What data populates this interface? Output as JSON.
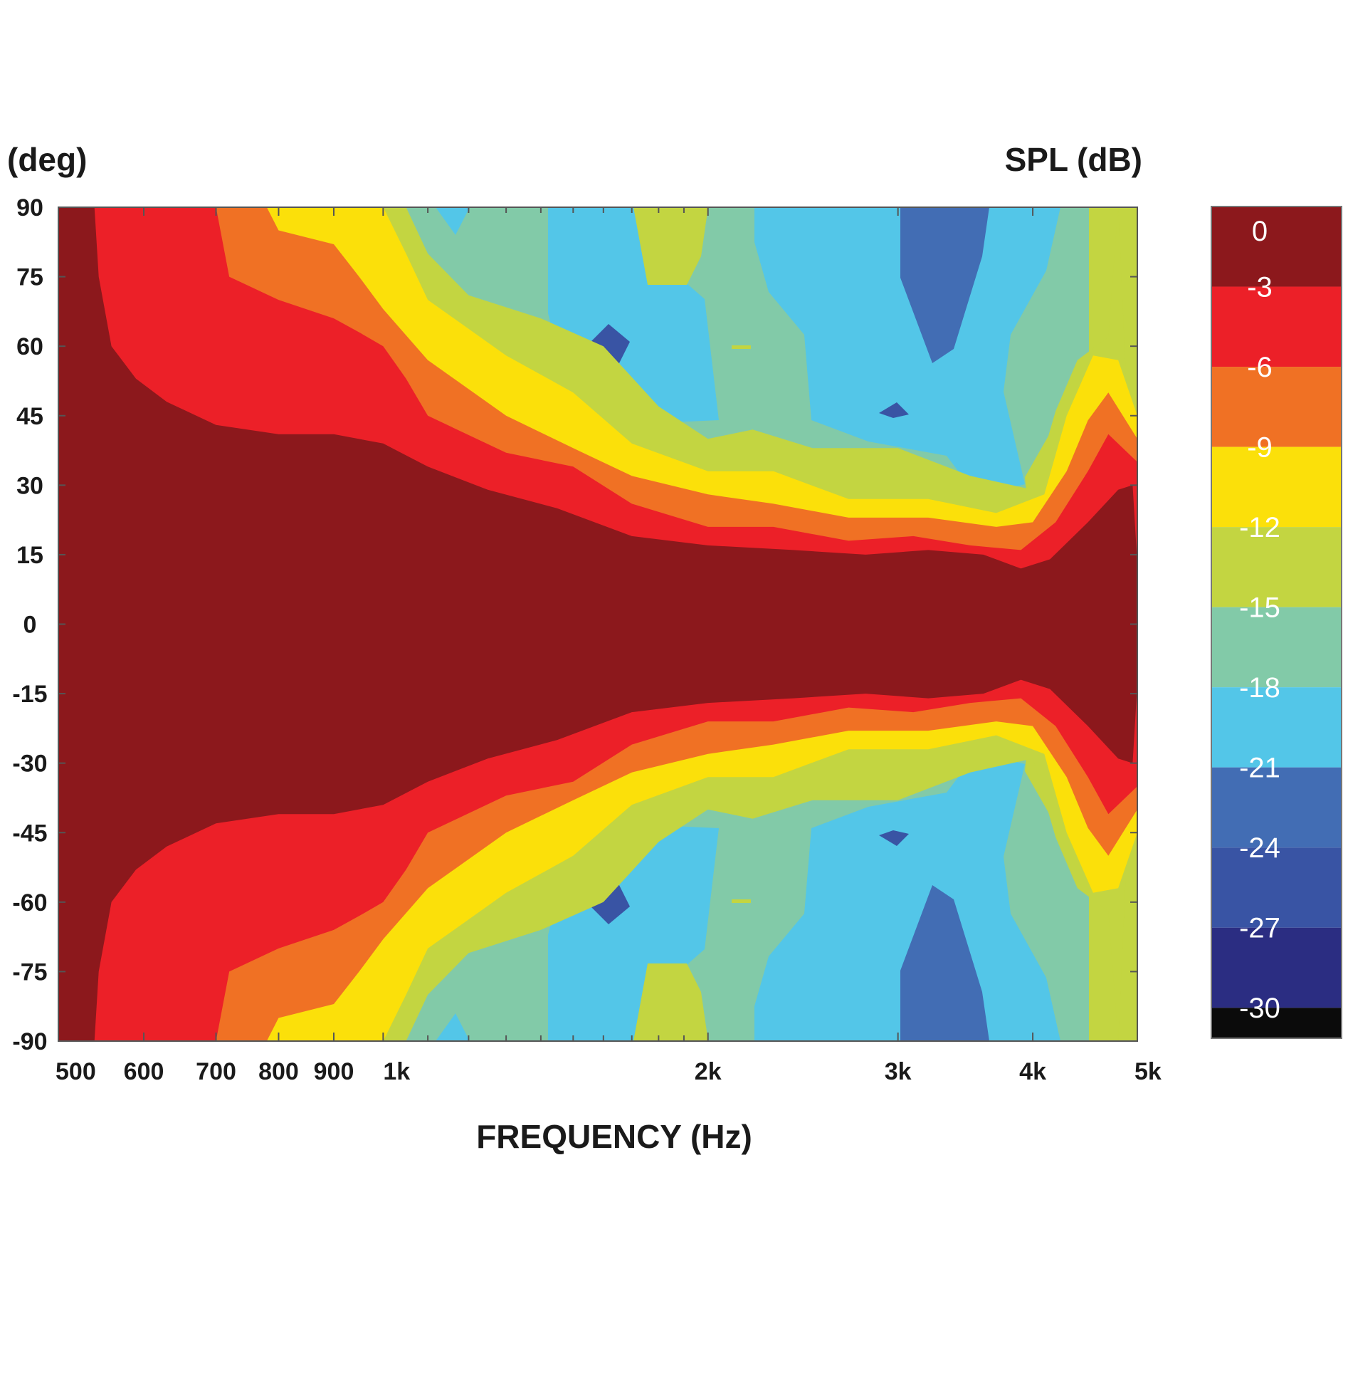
{
  "chart_data": {
    "type": "heatmap",
    "title": "",
    "xlabel": "FREQUENCY (Hz)",
    "ylabel": "(deg)",
    "colorbar_label": "SPL (dB)",
    "x_scale": "log",
    "xlim": [
      500,
      5000
    ],
    "ylim": [
      -90,
      90
    ],
    "x_ticks": [
      {
        "value": 500,
        "label": "500"
      },
      {
        "value": 600,
        "label": "600"
      },
      {
        "value": 700,
        "label": "700"
      },
      {
        "value": 800,
        "label": "800"
      },
      {
        "value": 900,
        "label": "900"
      },
      {
        "value": 1000,
        "label": "1k"
      },
      {
        "value": 2000,
        "label": "2k"
      },
      {
        "value": 3000,
        "label": "3k"
      },
      {
        "value": 4000,
        "label": "4k"
      },
      {
        "value": 5000,
        "label": "5k"
      }
    ],
    "x_minor_ticks": [
      1100,
      1200,
      1300,
      1400,
      1500,
      1600,
      1700,
      1800,
      1900
    ],
    "y_ticks": [
      {
        "value": 90,
        "label": "90"
      },
      {
        "value": 75,
        "label": "75"
      },
      {
        "value": 60,
        "label": "60"
      },
      {
        "value": 45,
        "label": "45"
      },
      {
        "value": 30,
        "label": "30"
      },
      {
        "value": 15,
        "label": "15"
      },
      {
        "value": 0,
        "label": "0"
      },
      {
        "value": -15,
        "label": "-15"
      },
      {
        "value": -30,
        "label": "-30"
      },
      {
        "value": -45,
        "label": "-45"
      },
      {
        "value": -60,
        "label": "-60"
      },
      {
        "value": -75,
        "label": "-75"
      },
      {
        "value": -90,
        "label": "-90"
      }
    ],
    "levels": [
      {
        "label": "0",
        "color": "#8c181c"
      },
      {
        "label": "-3",
        "color": "#ec2028"
      },
      {
        "label": "-6",
        "color": "#f07124"
      },
      {
        "label": "-9",
        "color": "#fbe00a"
      },
      {
        "label": "-12",
        "color": "#c3d541"
      },
      {
        "label": "-15",
        "color": "#82caa8"
      },
      {
        "label": "-18",
        "color": "#53c6e8"
      },
      {
        "label": "-21",
        "color": "#426db4"
      },
      {
        "label": "-24",
        "color": "#3954a4"
      },
      {
        "label": "-27",
        "color": "#2b2d82"
      },
      {
        "label": "-30",
        "color": "#0b0b0b"
      }
    ],
    "grid": false,
    "contours": {
      "note_units": "frequency in Hz, angle in degrees; upper half listed, lower half mirrors about 0",
      "beam_edges": [
        {
          "level": "-3",
          "points": [
            [
              500,
              90
            ],
            [
              540,
              90
            ],
            [
              545,
              75
            ],
            [
              560,
              60
            ],
            [
              590,
              53
            ],
            [
              630,
              48
            ],
            [
              700,
              43
            ],
            [
              800,
              41
            ],
            [
              900,
              41
            ],
            [
              1000,
              39
            ],
            [
              1100,
              34
            ],
            [
              1250,
              29
            ],
            [
              1450,
              25
            ],
            [
              1700,
              19
            ],
            [
              2000,
              17
            ],
            [
              2400,
              16
            ],
            [
              2800,
              15
            ],
            [
              3200,
              16
            ],
            [
              3600,
              15
            ],
            [
              3900,
              12
            ],
            [
              4150,
              14
            ],
            [
              4500,
              22
            ],
            [
              4800,
              29
            ],
            [
              4950,
              30
            ],
            [
              5000,
              13
            ]
          ]
        },
        {
          "level": "-6",
          "points": [
            [
              540,
              90
            ],
            [
              700,
              90
            ],
            [
              720,
              75
            ],
            [
              800,
              70
            ],
            [
              900,
              66
            ],
            [
              950,
              63
            ],
            [
              1000,
              60
            ],
            [
              1050,
              53
            ],
            [
              1100,
              45
            ],
            [
              1300,
              37
            ],
            [
              1500,
              34
            ],
            [
              1700,
              26
            ],
            [
              2000,
              21
            ],
            [
              2300,
              21
            ],
            [
              2700,
              18
            ],
            [
              3100,
              19
            ],
            [
              3500,
              17
            ],
            [
              3900,
              16
            ],
            [
              4200,
              22
            ],
            [
              4500,
              33
            ],
            [
              4700,
              41
            ],
            [
              5000,
              35
            ]
          ]
        },
        {
          "level": "-9",
          "points": [
            [
              700,
              90
            ],
            [
              780,
              90
            ],
            [
              800,
              85
            ],
            [
              900,
              82
            ],
            [
              950,
              75
            ],
            [
              1000,
              68
            ],
            [
              1100,
              57
            ],
            [
              1300,
              45
            ],
            [
              1500,
              38
            ],
            [
              1700,
              32
            ],
            [
              2000,
              28
            ],
            [
              2300,
              26
            ],
            [
              2700,
              23
            ],
            [
              3200,
              23
            ],
            [
              3700,
              21
            ],
            [
              4000,
              22
            ],
            [
              4300,
              33
            ],
            [
              4500,
              44
            ],
            [
              4700,
              50
            ],
            [
              5000,
              40
            ]
          ]
        },
        {
          "level": "-12",
          "points": [
            [
              900,
              90
            ],
            [
              1000,
              90
            ],
            [
              1050,
              80
            ],
            [
              1100,
              70
            ],
            [
              1300,
              58
            ],
            [
              1500,
              50
            ],
            [
              1700,
              39
            ],
            [
              2000,
              33
            ],
            [
              2300,
              33
            ],
            [
              2700,
              27
            ],
            [
              3200,
              27
            ],
            [
              3700,
              24
            ],
            [
              4100,
              28
            ],
            [
              4300,
              45
            ],
            [
              4550,
              58
            ],
            [
              4800,
              57
            ],
            [
              5000,
              45
            ]
          ]
        },
        {
          "level": "-15",
          "points": [
            [
              1050,
              90
            ],
            [
              1100,
              80
            ],
            [
              1200,
              71
            ],
            [
              1400,
              66
            ],
            [
              1600,
              60
            ],
            [
              1800,
              47
            ],
            [
              2000,
              40
            ],
            [
              2200,
              42
            ],
            [
              2500,
              38
            ],
            [
              3000,
              38
            ],
            [
              3500,
              32
            ],
            [
              4000,
              29
            ],
            [
              4200,
              46
            ],
            [
              4400,
              57
            ],
            [
              4700,
              62
            ],
            [
              4800,
              90
            ]
          ]
        }
      ]
    }
  }
}
